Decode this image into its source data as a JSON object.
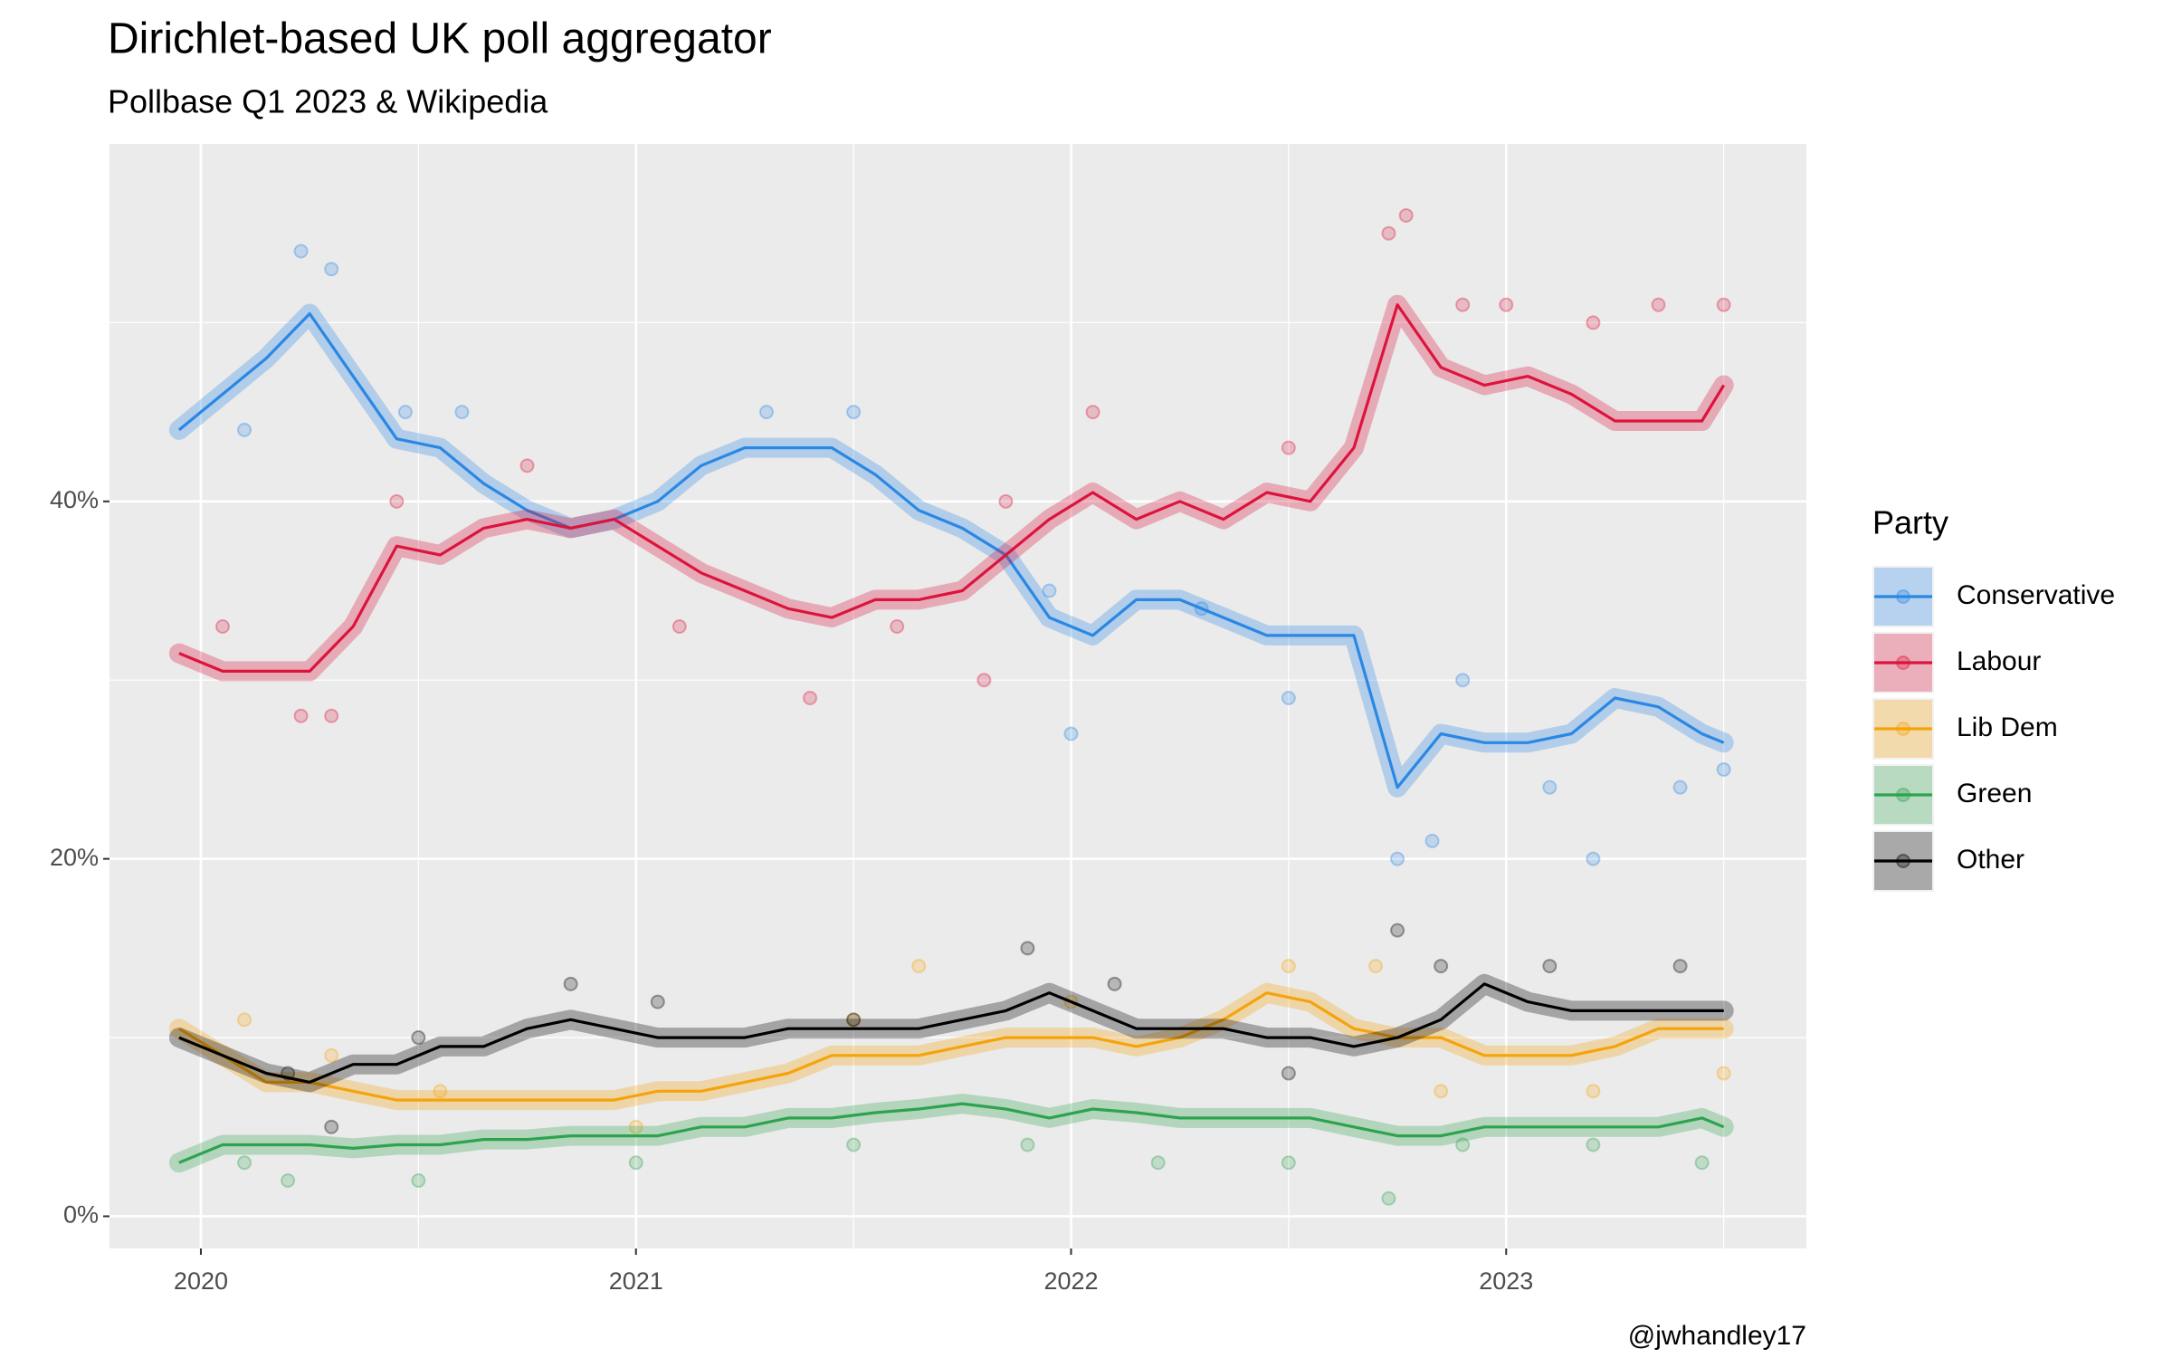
{
  "chart_data": {
    "type": "line",
    "title": "Dirichlet-based UK poll aggregator",
    "subtitle": "Pollbase Q1 2023 & Wikipedia",
    "caption": "@jwhandley17",
    "legend_title": "Party",
    "legend": "right",
    "grid": true,
    "xlim": [
      2019.79,
      2023.69
    ],
    "xticks": [
      2020,
      2021,
      2022,
      2023
    ],
    "ylim": [
      -1.8,
      60
    ],
    "yticks": [
      {
        "value": 0,
        "label": "0%"
      },
      {
        "value": 20,
        "label": "20%"
      },
      {
        "value": 40,
        "label": "40%"
      }
    ],
    "x": [
      2019.95,
      2020.05,
      2020.15,
      2020.25,
      2020.35,
      2020.45,
      2020.55,
      2020.65,
      2020.75,
      2020.85,
      2020.95,
      2021.05,
      2021.15,
      2021.25,
      2021.35,
      2021.45,
      2021.55,
      2021.65,
      2021.75,
      2021.85,
      2021.95,
      2022.05,
      2022.15,
      2022.25,
      2022.35,
      2022.45,
      2022.55,
      2022.65,
      2022.75,
      2022.85,
      2022.95,
      2023.05,
      2023.15,
      2023.25,
      2023.35,
      2023.45,
      2023.5
    ],
    "series": [
      {
        "name": "Conservative",
        "color": "#2a87e3",
        "values": [
          44,
          46,
          48,
          50.5,
          47,
          43.5,
          43,
          41,
          39.5,
          38.5,
          39,
          40,
          42,
          43,
          43,
          43,
          41.5,
          39.5,
          38.5,
          37,
          33.5,
          32.5,
          34.5,
          34.5,
          33.5,
          32.5,
          32.5,
          32.5,
          24,
          27,
          26.5,
          26.5,
          27,
          29,
          28.5,
          27,
          26.5
        ],
        "poll_x": [
          2020.1,
          2020.23,
          2020.3,
          2020.47,
          2020.6,
          2021.3,
          2021.5,
          2021.95,
          2022.0,
          2022.3,
          2022.5,
          2022.75,
          2022.83,
          2022.9,
          2023.1,
          2023.2,
          2023.4,
          2023.5
        ],
        "poll_values": [
          44,
          54,
          53,
          45,
          45,
          45,
          45,
          35,
          27,
          34,
          29,
          20,
          21,
          30,
          24,
          20,
          24,
          25
        ]
      },
      {
        "name": "Labour",
        "color": "#dc143c",
        "values": [
          31.5,
          30.5,
          30.5,
          30.5,
          33,
          37.5,
          37,
          38.5,
          39,
          38.5,
          39,
          37.5,
          36,
          35,
          34,
          33.5,
          34.5,
          34.5,
          35,
          37,
          39,
          40.5,
          39,
          40,
          39,
          40.5,
          40,
          43,
          51,
          47.5,
          46.5,
          47,
          46,
          44.5,
          44.5,
          44.5,
          46.5
        ],
        "poll_x": [
          2020.05,
          2020.23,
          2020.3,
          2020.45,
          2020.75,
          2021.1,
          2021.4,
          2021.6,
          2021.8,
          2021.85,
          2022.05,
          2022.5,
          2022.73,
          2022.77,
          2022.9,
          2023.0,
          2023.2,
          2023.35,
          2023.5
        ],
        "poll_values": [
          33,
          28,
          28,
          40,
          42,
          33,
          29,
          33,
          30,
          40,
          45,
          43,
          55,
          56,
          51,
          51,
          50,
          51,
          51
        ]
      },
      {
        "name": "Lib Dem",
        "color": "#f5a30a",
        "values": [
          10.5,
          9,
          7.5,
          7.5,
          7,
          6.5,
          6.5,
          6.5,
          6.5,
          6.5,
          6.5,
          7,
          7,
          7.5,
          8,
          9,
          9,
          9,
          9.5,
          10,
          10,
          10,
          9.5,
          10,
          11,
          12.5,
          12,
          10.5,
          10,
          10,
          9,
          9,
          9,
          9.5,
          10.5,
          10.5,
          10.5
        ],
        "poll_x": [
          2020.1,
          2020.3,
          2020.55,
          2021.0,
          2021.5,
          2021.65,
          2022.0,
          2022.5,
          2022.7,
          2022.85,
          2023.2,
          2023.5
        ],
        "poll_values": [
          11,
          9,
          7,
          5,
          11,
          14,
          12,
          14,
          14,
          7,
          7,
          8
        ]
      },
      {
        "name": "Green",
        "color": "#2ea34f",
        "values": [
          3,
          4,
          4,
          4,
          3.8,
          4,
          4,
          4.3,
          4.3,
          4.5,
          4.5,
          4.5,
          5,
          5,
          5.5,
          5.5,
          5.8,
          6,
          6.3,
          6,
          5.5,
          6,
          5.8,
          5.5,
          5.5,
          5.5,
          5.5,
          5,
          4.5,
          4.5,
          5,
          5,
          5,
          5,
          5,
          5.5,
          5
        ],
        "poll_x": [
          2020.1,
          2020.2,
          2020.5,
          2021.0,
          2021.5,
          2021.9,
          2022.2,
          2022.5,
          2022.73,
          2022.9,
          2023.2,
          2023.45
        ],
        "poll_values": [
          3,
          2,
          2,
          3,
          4,
          4,
          3,
          3,
          1,
          4,
          4,
          3
        ]
      },
      {
        "name": "Other",
        "color": "#000000",
        "values": [
          10,
          9,
          8,
          7.5,
          8.5,
          8.5,
          9.5,
          9.5,
          10.5,
          11,
          10.5,
          10,
          10,
          10,
          10.5,
          10.5,
          10.5,
          10.5,
          11,
          11.5,
          12.5,
          11.5,
          10.5,
          10.5,
          10.5,
          10,
          10,
          9.5,
          10,
          11,
          13,
          12,
          11.5,
          11.5,
          11.5,
          11.5,
          11.5
        ],
        "poll_x": [
          2020.2,
          2020.3,
          2020.5,
          2020.85,
          2021.05,
          2021.5,
          2021.9,
          2022.1,
          2022.5,
          2022.75,
          2022.85,
          2023.1,
          2023.4
        ],
        "poll_values": [
          8,
          5,
          10,
          13,
          12,
          11,
          15,
          13,
          8,
          16,
          14,
          14,
          14
        ]
      }
    ]
  }
}
